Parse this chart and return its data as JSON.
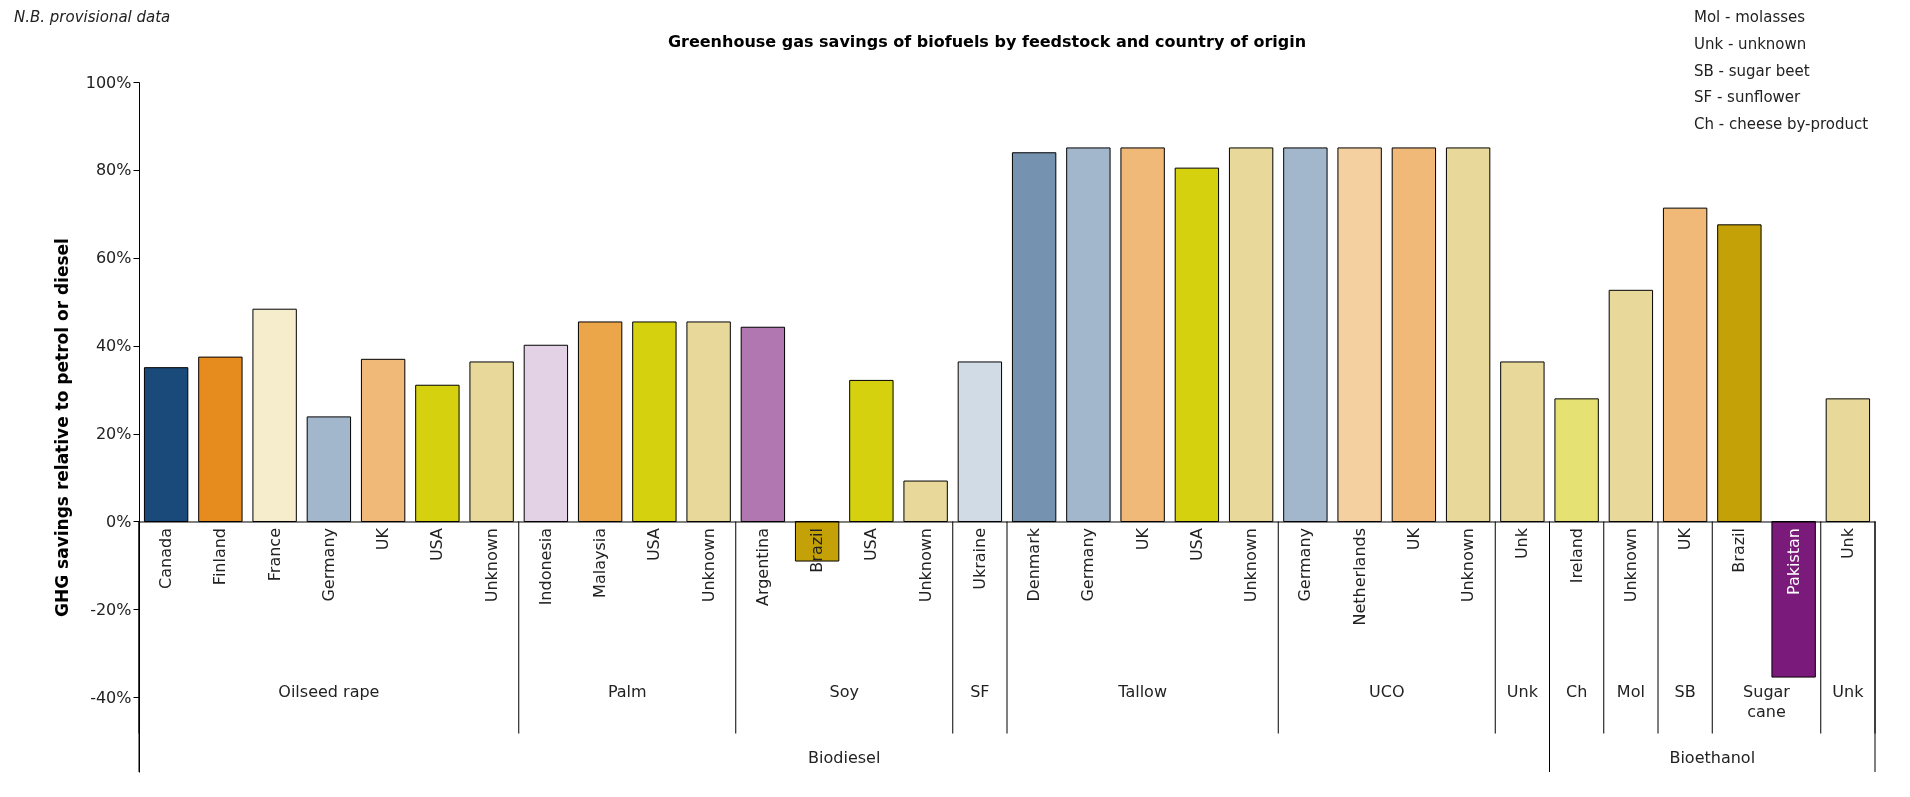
{
  "chart_data": {
    "type": "bar",
    "title": "Greenhouse gas savings of biofuels by feedstock and country of origin",
    "ylabel": "GHG savings relative to petrol or diesel",
    "categories": [
      "Canada",
      "Finland",
      "France",
      "Germany",
      "UK",
      "USA",
      "Unknown",
      "Indonesia",
      "Malaysia",
      "USA",
      "Unknown",
      "Argentina",
      "Brazil",
      "USA",
      "Unknown",
      "Ukraine",
      "Denmark",
      "Germany",
      "UK",
      "USA",
      "Unknown",
      "Germany",
      "Netherlands",
      "UK",
      "Unknown",
      "Unk",
      "Ireland",
      "Unknown",
      "UK",
      "Brazil",
      "Pakistan",
      "Unk"
    ],
    "values": [
      35,
      37.4,
      48.3,
      23.8,
      36.9,
      31,
      36.3,
      40.1,
      45.4,
      45.4,
      45.4,
      44.2,
      -9,
      32.1,
      9.2,
      36.3,
      83.9,
      85,
      85,
      80.4,
      85,
      85,
      85,
      85,
      85,
      36.3,
      27.9,
      52.6,
      71.3,
      67.5,
      -35.4,
      27.9
    ],
    "colors": [
      "#1a4a7a",
      "#e68c1f",
      "#f5edcb",
      "#a3b7cc",
      "#f0b978",
      "#d6d10f",
      "#e8d99a",
      "#e3d2e5",
      "#eba64a",
      "#d6d10f",
      "#e8d99a",
      "#b077b0",
      "#c4a106",
      "#d6d10f",
      "#e8d99a",
      "#d1dbe6",
      "#7592b0",
      "#a3b7cc",
      "#f0b978",
      "#d6d10f",
      "#e8d99a",
      "#a3b7cc",
      "#f4cfa0",
      "#f0b978",
      "#e8d99a",
      "#e8d99a",
      "#e5e172",
      "#e8d99a",
      "#f0b978",
      "#c4a106",
      "#7a1a7a",
      "#e8d99a"
    ],
    "ylim": [
      -57,
      100
    ],
    "yticks": [
      {
        "value": -40,
        "label": "-40%"
      },
      {
        "value": -20,
        "label": "-20%"
      },
      {
        "value": 0,
        "label": "0%"
      },
      {
        "value": 20,
        "label": "20%"
      },
      {
        "value": 40,
        "label": "40%"
      },
      {
        "value": 60,
        "label": "60%"
      },
      {
        "value": 80,
        "label": "80%"
      },
      {
        "value": 100,
        "label": "100%"
      }
    ],
    "annotations": [
      "N.B. provisional data",
      "Mol - molasses",
      "Unk - unknown",
      "SB - sugar beet",
      "SF - sunflower",
      "Ch - cheese by-product",
      "Oilseed rape",
      "Palm",
      "Soy",
      "SF",
      "Tallow",
      "UCO",
      "Unk",
      "Ch",
      "Mol",
      "SB",
      "Sugar\ncane",
      "Unk",
      "Biodiesel",
      "Bioethanol"
    ]
  }
}
